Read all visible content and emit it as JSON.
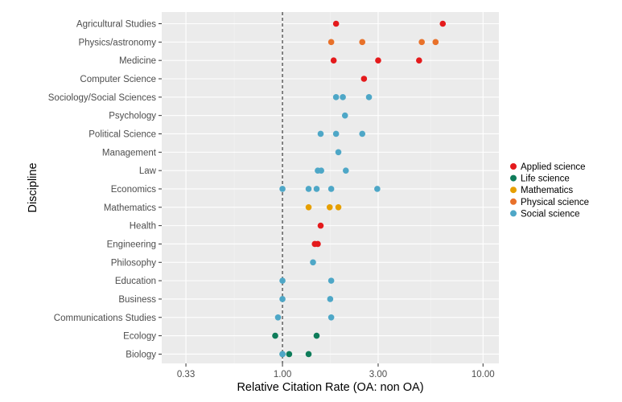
{
  "chart_data": {
    "type": "scatter",
    "xlabel": "Relative Citation Rate (OA: non OA)",
    "ylabel": "Discipline",
    "x_scale": "log",
    "xlim": [
      0.25,
      12
    ],
    "x_ticks": [
      0.33,
      1.0,
      3.0,
      10.0
    ],
    "x_tick_labels": [
      "0.33",
      "1.00",
      "3.00",
      "10.00"
    ],
    "reference_line_x": 1.0,
    "grid": true,
    "legend_position": "right",
    "categories": [
      "Agricultural Studies",
      "Physics/astronomy",
      "Medicine",
      "Computer Science",
      "Sociology/Social Sciences",
      "Psychology",
      "Political Science",
      "Management",
      "Law",
      "Economics",
      "Mathematics",
      "Health",
      "Engineering",
      "Philosophy",
      "Education",
      "Business",
      "Communications Studies",
      "Ecology",
      "Biology"
    ],
    "series": [
      {
        "name": "Applied science",
        "color": "#e41a1c",
        "points": [
          {
            "y": "Agricultural Studies",
            "x": 1.85
          },
          {
            "y": "Agricultural Studies",
            "x": 6.3
          },
          {
            "y": "Medicine",
            "x": 1.8
          },
          {
            "y": "Medicine",
            "x": 3.0
          },
          {
            "y": "Medicine",
            "x": 4.8
          },
          {
            "y": "Computer Science",
            "x": 2.55
          },
          {
            "y": "Health",
            "x": 1.55
          },
          {
            "y": "Engineering",
            "x": 1.45
          },
          {
            "y": "Engineering",
            "x": 1.5
          }
        ]
      },
      {
        "name": "Life science",
        "color": "#0e7c5a",
        "points": [
          {
            "y": "Ecology",
            "x": 0.92
          },
          {
            "y": "Ecology",
            "x": 1.48
          },
          {
            "y": "Biology",
            "x": 1.0
          },
          {
            "y": "Biology",
            "x": 1.08
          },
          {
            "y": "Biology",
            "x": 1.35
          }
        ]
      },
      {
        "name": "Mathematics",
        "color": "#e69f00",
        "points": [
          {
            "y": "Mathematics",
            "x": 1.35
          },
          {
            "y": "Mathematics",
            "x": 1.72
          },
          {
            "y": "Mathematics",
            "x": 1.9
          }
        ]
      },
      {
        "name": "Physical science",
        "color": "#e8712a",
        "points": [
          {
            "y": "Physics/astronomy",
            "x": 1.75
          },
          {
            "y": "Physics/astronomy",
            "x": 2.5
          },
          {
            "y": "Physics/astronomy",
            "x": 4.95
          },
          {
            "y": "Physics/astronomy",
            "x": 5.8
          }
        ]
      },
      {
        "name": "Social science",
        "color": "#4ea7c7",
        "points": [
          {
            "y": "Sociology/Social Sciences",
            "x": 1.85
          },
          {
            "y": "Sociology/Social Sciences",
            "x": 2.0
          },
          {
            "y": "Sociology/Social Sciences",
            "x": 2.7
          },
          {
            "y": "Psychology",
            "x": 2.05
          },
          {
            "y": "Political Science",
            "x": 1.55
          },
          {
            "y": "Political Science",
            "x": 1.85
          },
          {
            "y": "Political Science",
            "x": 2.5
          },
          {
            "y": "Management",
            "x": 1.9
          },
          {
            "y": "Law",
            "x": 1.5
          },
          {
            "y": "Law",
            "x": 1.56
          },
          {
            "y": "Law",
            "x": 2.07
          },
          {
            "y": "Economics",
            "x": 1.0
          },
          {
            "y": "Economics",
            "x": 1.35
          },
          {
            "y": "Economics",
            "x": 1.48
          },
          {
            "y": "Economics",
            "x": 1.75
          },
          {
            "y": "Economics",
            "x": 2.97
          },
          {
            "y": "Philosophy",
            "x": 1.42
          },
          {
            "y": "Education",
            "x": 1.0
          },
          {
            "y": "Education",
            "x": 1.75
          },
          {
            "y": "Business",
            "x": 1.0
          },
          {
            "y": "Business",
            "x": 1.73
          },
          {
            "y": "Communications Studies",
            "x": 0.95
          },
          {
            "y": "Communications Studies",
            "x": 1.75
          },
          {
            "y": "Biology",
            "x": 1.0
          }
        ]
      }
    ]
  }
}
